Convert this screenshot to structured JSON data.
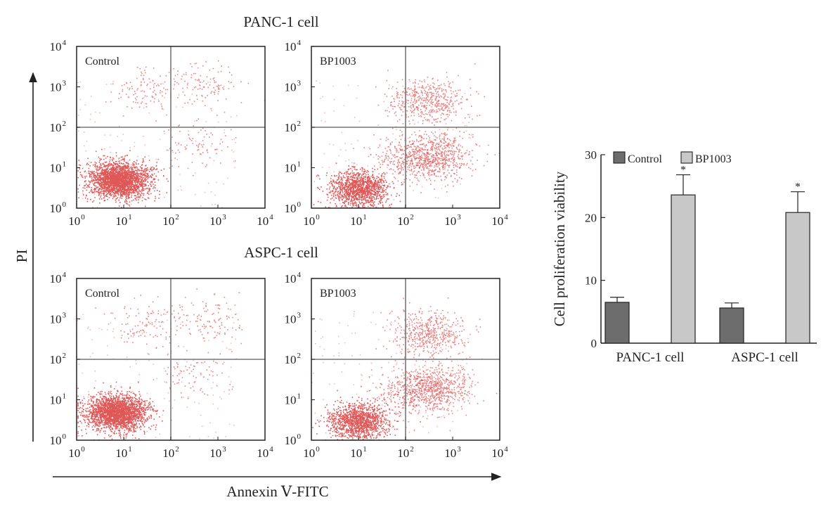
{
  "figure": {
    "flow_cytometry": {
      "shared_x_label": "Annexin Ⅴ-FITC",
      "shared_y_label": "PI",
      "axis_tick_base": "10",
      "axis_tick_exponents": [
        "0",
        "1",
        "2",
        "3",
        "4"
      ],
      "rows": [
        {
          "title": "PANC-1 cell",
          "panels": [
            {
              "label": "Control",
              "profile": "control"
            },
            {
              "label": "BP1003",
              "profile": "treated"
            }
          ]
        },
        {
          "title": "ASPC-1 cell",
          "panels": [
            {
              "label": "Control",
              "profile": "control"
            },
            {
              "label": "BP1003",
              "profile": "treated"
            }
          ]
        }
      ],
      "dot_color": "#d42020",
      "gate_line_color": "#777777",
      "gate_position_decades": {
        "x": 2,
        "y": 2
      }
    }
  },
  "chart_data": [
    {
      "type": "scatter",
      "title": "PANC-1 cell",
      "subtitle": "Control",
      "xlabel": "Annexin Ⅴ-FITC",
      "ylabel": "PI",
      "xscale": "log",
      "yscale": "log",
      "xlim": [
        1,
        10000
      ],
      "ylim": [
        1,
        10000
      ],
      "populations": [
        {
          "center": [
            8,
            5
          ],
          "share": 0.86
        },
        {
          "center": [
            30,
            900
          ],
          "share": 0.04
        },
        {
          "center": [
            600,
            1100
          ],
          "share": 0.04
        },
        {
          "center": [
            300,
            40
          ],
          "share": 0.03
        }
      ]
    },
    {
      "type": "scatter",
      "title": "PANC-1 cell",
      "subtitle": "BP1003",
      "xlabel": "Annexin Ⅴ-FITC",
      "ylabel": "PI",
      "xscale": "log",
      "yscale": "log",
      "xlim": [
        1,
        10000
      ],
      "ylim": [
        1,
        10000
      ],
      "populations": [
        {
          "center": [
            10,
            3
          ],
          "share": 0.45
        },
        {
          "center": [
            400,
            20
          ],
          "share": 0.25
        },
        {
          "center": [
            300,
            450
          ],
          "share": 0.18
        },
        {
          "center": [
            100,
            15
          ],
          "share": 0.08
        }
      ]
    },
    {
      "type": "scatter",
      "title": "ASPC-1 cell",
      "subtitle": "Control",
      "xlabel": "Annexin Ⅴ-FITC",
      "ylabel": "PI",
      "xscale": "log",
      "yscale": "log",
      "xlim": [
        1,
        10000
      ],
      "ylim": [
        1,
        10000
      ],
      "populations": [
        {
          "center": [
            7,
            5
          ],
          "share": 0.86
        },
        {
          "center": [
            30,
            800
          ],
          "share": 0.04
        },
        {
          "center": [
            600,
            1000
          ],
          "share": 0.04
        },
        {
          "center": [
            300,
            50
          ],
          "share": 0.03
        }
      ]
    },
    {
      "type": "scatter",
      "title": "ASPC-1 cell",
      "subtitle": "BP1003",
      "xlabel": "Annexin Ⅴ-FITC",
      "ylabel": "PI",
      "xscale": "log",
      "yscale": "log",
      "xlim": [
        1,
        10000
      ],
      "ylim": [
        1,
        10000
      ],
      "populations": [
        {
          "center": [
            10,
            3
          ],
          "share": 0.45
        },
        {
          "center": [
            400,
            20
          ],
          "share": 0.25
        },
        {
          "center": [
            300,
            450
          ],
          "share": 0.18
        },
        {
          "center": [
            100,
            15
          ],
          "share": 0.08
        }
      ]
    },
    {
      "type": "bar",
      "title": "",
      "xlabel": "",
      "ylabel": "Cell proliferation viability",
      "categories": [
        "PANC-1 cell",
        "ASPC-1 cell"
      ],
      "series": [
        {
          "name": "Control",
          "values": [
            6.5,
            5.6
          ],
          "errors": [
            0.8,
            0.8
          ],
          "color": "#6d6d6d",
          "significance": [
            "",
            ""
          ]
        },
        {
          "name": "BP1003",
          "values": [
            23.6,
            20.8
          ],
          "errors": [
            3.2,
            3.3
          ],
          "color": "#c8c8c8",
          "significance": [
            "*",
            "*"
          ]
        }
      ],
      "ylim": [
        0,
        30
      ],
      "yticks": [
        "0",
        "10",
        "20",
        "30"
      ],
      "legend_position": "top",
      "grid": false
    }
  ]
}
